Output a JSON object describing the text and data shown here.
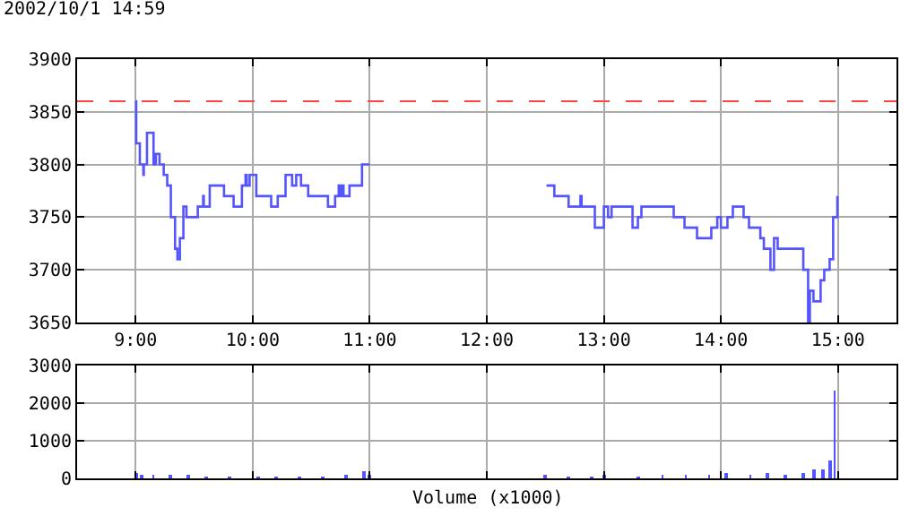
{
  "chart_data": [
    {
      "type": "step",
      "title": "2002/10/1 14:59",
      "color": "#5555ff",
      "x": [
        9.0,
        9.005,
        9.036,
        9.066,
        9.07,
        9.097,
        9.153,
        9.173,
        9.204,
        9.24,
        9.27,
        9.301,
        9.337,
        9.357,
        9.378,
        9.408,
        9.434,
        9.531,
        9.577,
        9.582,
        9.633,
        9.755,
        9.837,
        9.908,
        9.939,
        9.949,
        9.974,
        10.031,
        10.158,
        10.214,
        10.281,
        10.337,
        10.372,
        10.413,
        10.474,
        10.643,
        10.704,
        10.735,
        10.745,
        10.765,
        10.776,
        10.827,
        10.934,
        11.0,
        11.5,
        12.51,
        12.577,
        12.699,
        12.8,
        12.81,
        12.923,
        13.0,
        13.036,
        13.066,
        13.245,
        13.291,
        13.321,
        13.597,
        13.689,
        13.796,
        13.918,
        13.969,
        14.0,
        14.056,
        14.102,
        14.194,
        14.24,
        14.337,
        14.367,
        14.423,
        14.454,
        14.485,
        14.704,
        14.745,
        14.76,
        14.791,
        14.852,
        14.883,
        14.929,
        14.959,
        14.995
      ],
      "values": [
        3860,
        3820,
        3800,
        3790,
        3800,
        3830,
        3800,
        3810,
        3800,
        3790,
        3780,
        3750,
        3720,
        3710,
        3730,
        3760,
        3750,
        3760,
        3770,
        3760,
        3780,
        3770,
        3760,
        3780,
        3790,
        3780,
        3790,
        3770,
        3760,
        3770,
        3790,
        3780,
        3790,
        3780,
        3770,
        3760,
        3770,
        3780,
        3770,
        3780,
        3770,
        3780,
        3800,
        3800,
        null,
        3780,
        3770,
        3760,
        3770,
        3760,
        3740,
        3760,
        3750,
        3760,
        3740,
        3750,
        3760,
        3750,
        3740,
        3730,
        3740,
        3750,
        3740,
        3750,
        3760,
        3750,
        3740,
        3730,
        3720,
        3700,
        3730,
        3720,
        3700,
        3650,
        3680,
        3670,
        3690,
        3700,
        3710,
        3750,
        3770
      ],
      "xlim": [
        8.5,
        15.5
      ],
      "ylim": [
        3650,
        3900
      ],
      "yticks": [
        3650,
        3700,
        3750,
        3800,
        3850,
        3900
      ],
      "xticks": [
        {
          "value": 9,
          "label": "9:00"
        },
        {
          "value": 10,
          "label": "10:00"
        },
        {
          "value": 11,
          "label": "11:00"
        },
        {
          "value": 12,
          "label": "12:00"
        },
        {
          "value": 13,
          "label": "13:00"
        },
        {
          "value": 14,
          "label": "14:00"
        },
        {
          "value": 15,
          "label": "15:00"
        }
      ],
      "ref_lines": [
        {
          "axis": "y",
          "value": 3860,
          "label": null,
          "color": "#ff4444",
          "line_style": "dashed"
        }
      ],
      "grid": true
    },
    {
      "type": "bar",
      "xlabel": "Volume (x1000)",
      "color": "#5555ff",
      "x": [
        9.0,
        9.05,
        9.15,
        9.3,
        9.45,
        9.6,
        9.8,
        10.05,
        10.2,
        10.4,
        10.6,
        10.8,
        10.95,
        11.0,
        12.5,
        12.7,
        12.9,
        13.0,
        13.3,
        13.5,
        13.7,
        13.9,
        14.05,
        14.25,
        14.4,
        14.55,
        14.7,
        14.8,
        14.87,
        14.93,
        14.97
      ],
      "values": [
        150,
        60,
        50,
        60,
        50,
        40,
        40,
        30,
        30,
        40,
        40,
        60,
        200,
        80,
        50,
        40,
        40,
        60,
        40,
        50,
        60,
        80,
        150,
        80,
        130,
        100,
        150,
        220,
        250,
        480,
        2350
      ],
      "xlim": [
        8.5,
        15.5
      ],
      "ylim": [
        0,
        3000
      ],
      "yticks": [
        0,
        1000,
        2000,
        3000
      ],
      "xticks": [
        9,
        10,
        11,
        12,
        13,
        14,
        15
      ],
      "tick_labels": "y",
      "grid": true
    }
  ]
}
